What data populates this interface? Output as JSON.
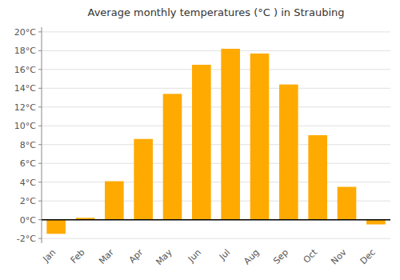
{
  "chart_data": {
    "type": "bar",
    "title": "Average monthly temperatures (°C ) in Straubing",
    "categories": [
      "Jan",
      "Feb",
      "Mar",
      "Apr",
      "May",
      "Jun",
      "Jul",
      "Aug",
      "Sep",
      "Oct",
      "Nov",
      "Dec"
    ],
    "values": [
      -1.5,
      0.2,
      4.1,
      8.6,
      13.4,
      16.5,
      18.2,
      17.7,
      14.4,
      9.0,
      3.5,
      -0.5
    ],
    "color": "#FFAA00",
    "ylim": [
      -2.5,
      20.5
    ],
    "yticks": [
      {
        "value": -2,
        "label": "-2°C"
      },
      {
        "value": 0,
        "label": "0°C"
      },
      {
        "value": 2,
        "label": "2°C"
      },
      {
        "value": 4,
        "label": "4°C"
      },
      {
        "value": 6,
        "label": "6°C"
      },
      {
        "value": 8,
        "label": "8°C"
      },
      {
        "value": 10,
        "label": "10°C"
      },
      {
        "value": 12,
        "label": "12°C"
      },
      {
        "value": 14,
        "label": "14°C"
      },
      {
        "value": 16,
        "label": "16°C"
      },
      {
        "value": 18,
        "label": "18°C"
      },
      {
        "value": 20,
        "label": "20°C"
      }
    ],
    "grid": true
  }
}
